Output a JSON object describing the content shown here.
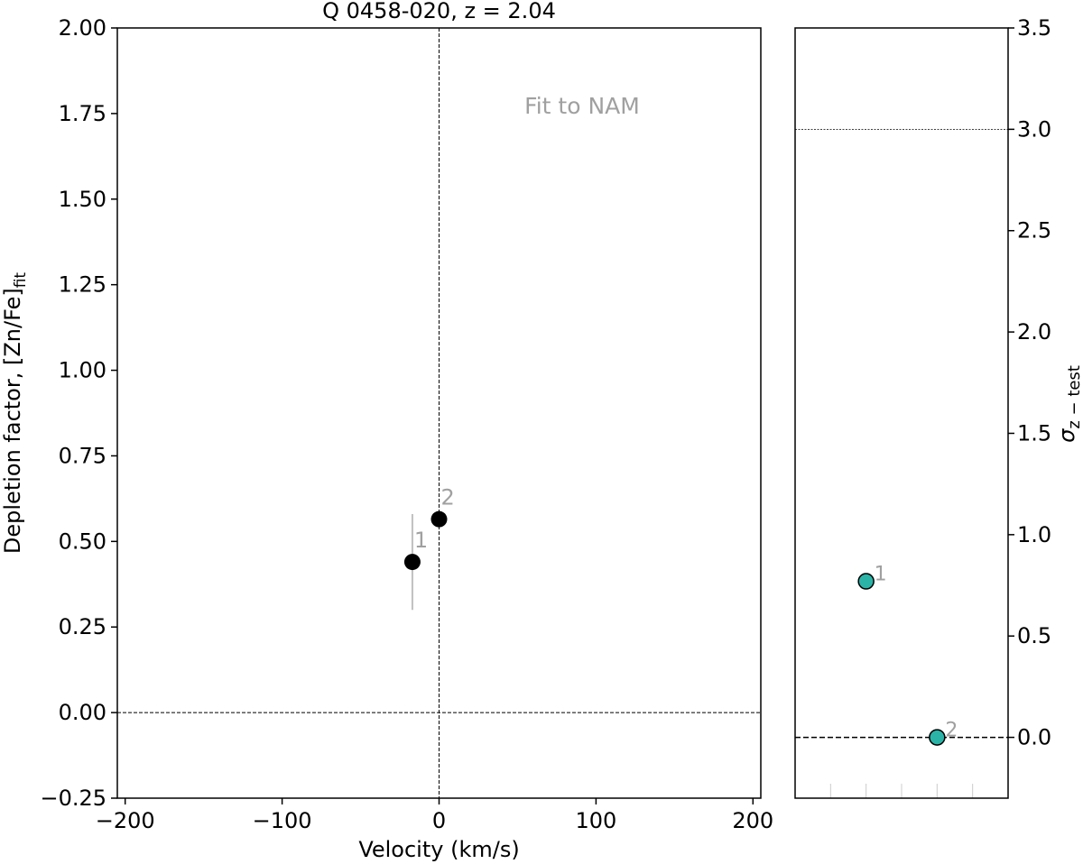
{
  "chart_data": [
    {
      "type": "scatter",
      "title": "Q 0458-020, z = 2.04",
      "xlabel": "Velocity (km/s)",
      "ylabel_main": "Depletion factor, [Zn/Fe]",
      "ylabel_sub": "fit",
      "xlim": [
        -205,
        205
      ],
      "ylim": [
        -0.25,
        2.0
      ],
      "xticks": [
        -200,
        -100,
        0,
        100,
        200
      ],
      "xtick_labels": [
        "−200",
        "−100",
        "0",
        "100",
        "200"
      ],
      "yticks": [
        -0.25,
        0.0,
        0.25,
        0.5,
        0.75,
        1.0,
        1.25,
        1.5,
        1.75,
        2.0
      ],
      "ytick_labels": [
        "−0.25",
        "0.00",
        "0.25",
        "0.50",
        "0.75",
        "1.00",
        "1.25",
        "1.50",
        "1.75",
        "2.00"
      ],
      "annotation": "Fit to NAM",
      "ref_lines": {
        "x": 0,
        "y": 0
      },
      "points": [
        {
          "label": "1",
          "x": -17,
          "y": 0.44,
          "yerr_low": 0.3,
          "yerr_high": 0.58
        },
        {
          "label": "2",
          "x": 0,
          "y": 0.565
        }
      ],
      "marker_color": "#000000",
      "errorbar_color": "#c0c0c0"
    },
    {
      "type": "scatter",
      "ylabel_main": "σ",
      "ylabel_sub": "z − test",
      "ylim": [
        -0.3,
        3.5
      ],
      "yticks": [
        0.0,
        0.5,
        1.0,
        1.5,
        2.0,
        2.5,
        3.0,
        3.5
      ],
      "ytick_labels": [
        "0.0",
        "0.5",
        "1.0",
        "1.5",
        "2.0",
        "2.5",
        "3.0",
        "3.5"
      ],
      "ref_lines": {
        "y_threshold": 3.0,
        "y_zero": 0.0
      },
      "points": [
        {
          "label": "1",
          "x_index": 2,
          "y": 0.77
        },
        {
          "label": "2",
          "x_index": 4,
          "y": 0.0
        }
      ],
      "marker_color": "#2bb3a7"
    }
  ]
}
